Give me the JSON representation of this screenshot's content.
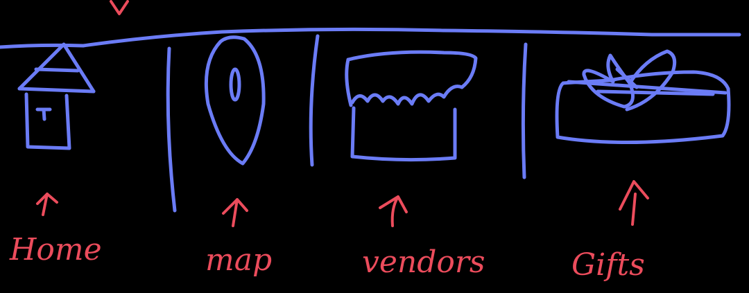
{
  "nav": {
    "items": [
      {
        "key": "home",
        "icon": "house-icon",
        "label": "Home"
      },
      {
        "key": "map",
        "icon": "map-pin-icon",
        "label": "map"
      },
      {
        "key": "vendors",
        "icon": "market-stall-icon",
        "label": "vendors"
      },
      {
        "key": "gifts",
        "icon": "gift-box-icon",
        "label": "Gifts"
      }
    ]
  },
  "colors": {
    "background": "#000000",
    "sketch_ink": "#6b7cf6",
    "annotation_ink": "#ec4c5c"
  }
}
